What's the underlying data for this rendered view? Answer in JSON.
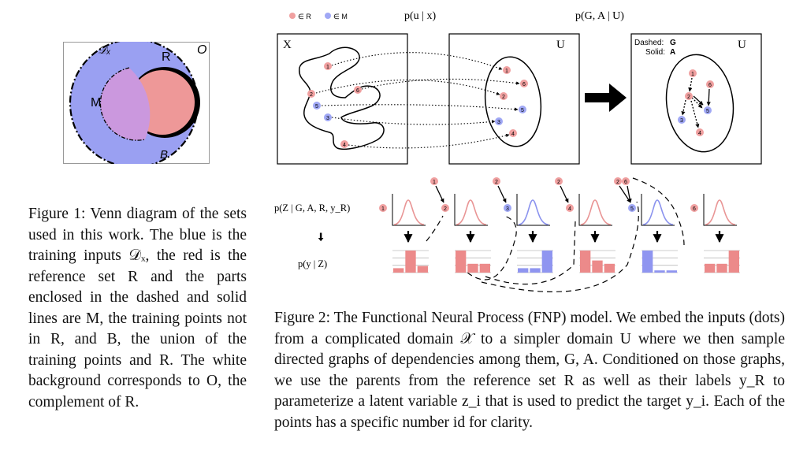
{
  "figure1": {
    "labels": {
      "dx": "𝒟ₓ",
      "r": "R",
      "o": "O",
      "m": "M",
      "b": "B"
    },
    "caption": "Figure 1: Venn diagram of the sets used in this work. The blue is the training inputs 𝒟ₓ, the red is the reference set R and the parts enclosed in the dashed and solid lines are M, the training points not in R, and B, the union of the training points and R. The white background corresponds to O, the complement of R."
  },
  "figure2": {
    "legend": {
      "in_r": "∈ R",
      "in_m": "∈ M"
    },
    "colors": {
      "red_point": "#f0a0a0",
      "blue_point": "#a0a8f5",
      "red_bar": "#ec8a8a",
      "blue_bar": "#8f95f0",
      "red_curve": "#e99595",
      "blue_curve": "#8b93ee"
    },
    "top_titles": {
      "p_ux": "p(u | x)",
      "p_gau": "p(G, A | U)"
    },
    "panel_labels": {
      "x": "X",
      "u1": "U",
      "u2": "U"
    },
    "graph_legend": {
      "dashed_label": "Dashed:",
      "dashed_value": "G",
      "solid_label": "Solid:",
      "solid_value": "A"
    },
    "x_points": [
      {
        "id": "1",
        "set": "R"
      },
      {
        "id": "2",
        "set": "R"
      },
      {
        "id": "6",
        "set": "R"
      },
      {
        "id": "5",
        "set": "M"
      },
      {
        "id": "3",
        "set": "M"
      },
      {
        "id": "4",
        "set": "R"
      }
    ],
    "u_points": [
      {
        "id": "1",
        "set": "R"
      },
      {
        "id": "6",
        "set": "R"
      },
      {
        "id": "2",
        "set": "R"
      },
      {
        "id": "5",
        "set": "M"
      },
      {
        "id": "3",
        "set": "M"
      },
      {
        "id": "4",
        "set": "R"
      }
    ],
    "graph_points": [
      {
        "id": "1",
        "set": "R"
      },
      {
        "id": "6",
        "set": "R"
      },
      {
        "id": "2",
        "set": "R"
      },
      {
        "id": "5",
        "set": "M"
      },
      {
        "id": "3",
        "set": "M"
      },
      {
        "id": "4",
        "set": "R"
      }
    ],
    "bottom_labels": {
      "p_z": "p(Z | G, A, R, y_R)",
      "p_y": "p(y | Z)"
    },
    "columns": [
      {
        "parents": [],
        "node": "1",
        "node_set": "R",
        "curve": "red",
        "bars": [
          0.2,
          1.0,
          0.3
        ],
        "bar_color": "red"
      },
      {
        "parents": [
          "1"
        ],
        "node": "2",
        "node_set": "R",
        "curve": "red",
        "bars": [
          1.0,
          0.4,
          0.4
        ],
        "bar_color": "red"
      },
      {
        "parents": [
          "2"
        ],
        "node": "3",
        "node_set": "M",
        "curve": "blue",
        "bars": [
          0.2,
          0.2,
          1.0
        ],
        "bar_color": "blue"
      },
      {
        "parents": [
          "2"
        ],
        "node": "4",
        "node_set": "R",
        "curve": "red",
        "bars": [
          1.0,
          0.55,
          0.4
        ],
        "bar_color": "red"
      },
      {
        "parents": [
          "2",
          "6"
        ],
        "node": "5",
        "node_set": "M",
        "curve": "blue",
        "bars": [
          1.0,
          0.1,
          0.1
        ],
        "bar_color": "blue"
      },
      {
        "parents": [],
        "node": "6",
        "node_set": "R",
        "curve": "red",
        "bars": [
          0.4,
          0.4,
          1.0
        ],
        "bar_color": "red"
      }
    ],
    "caption": "Figure 2: The Functional Neural Process (FNP) model. We embed the inputs (dots) from a complicated domain 𝒳 to a simpler domain U where we then sample directed graphs of dependencies among them, G, A. Conditioned on those graphs, we use the parents from the reference set R as well as their labels y_R to parameterize a latent variable z_i that is used to predict the target y_i. Each of the points has a specific number id for clarity."
  }
}
